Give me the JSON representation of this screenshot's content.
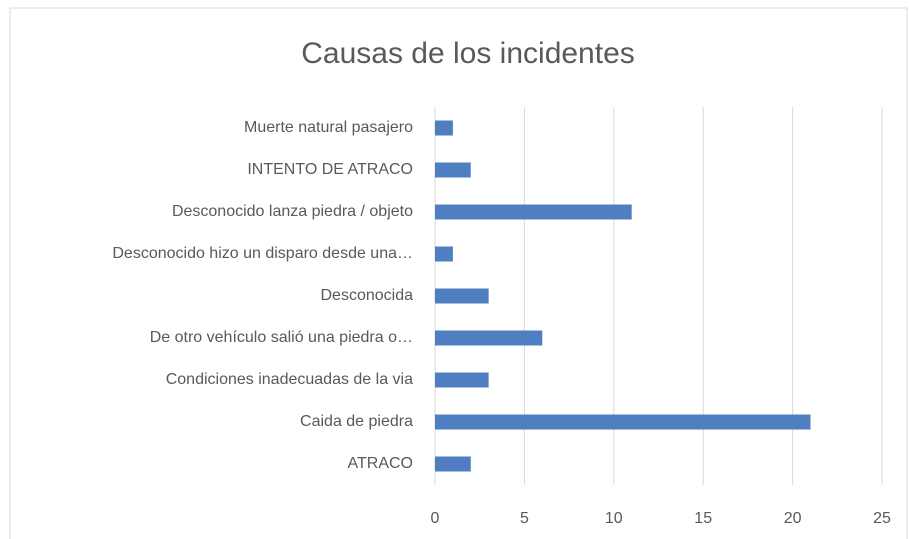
{
  "chart_data": {
    "type": "bar",
    "orientation": "horizontal",
    "title": "Causas de los incidentes",
    "categories": [
      "Muerte natural pasajero",
      "INTENTO DE ATRACO",
      "Desconocido lanza piedra / objeto",
      "Desconocido hizo un disparo desde una…",
      "Desconocida",
      "De otro vehículo salió una piedra o…",
      "Condiciones inadecuadas de la via",
      "Caida de piedra",
      "ATRACO"
    ],
    "values": [
      1,
      2,
      11,
      1,
      3,
      6,
      3,
      21,
      2
    ],
    "color": "#4f7fc0",
    "xlim": [
      0,
      25
    ],
    "xticks": [
      0,
      5,
      10,
      15,
      20,
      25
    ],
    "grid": true
  }
}
